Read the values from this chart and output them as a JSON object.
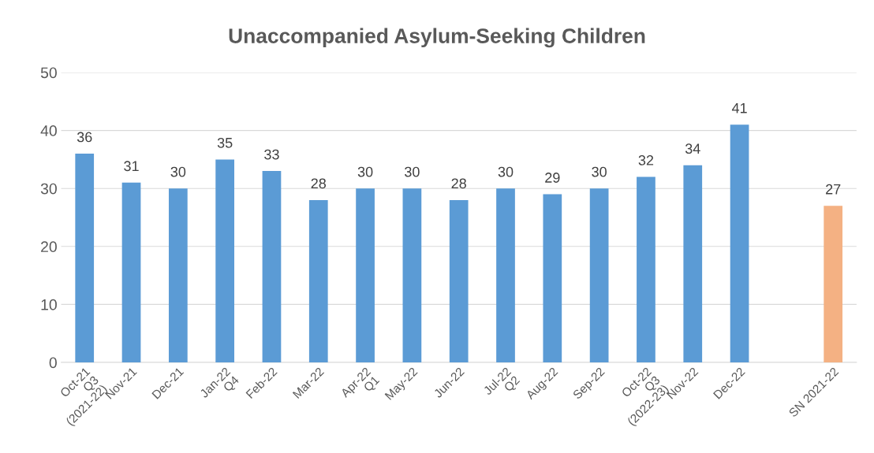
{
  "chart_data": {
    "type": "bar",
    "title": "Unaccompanied Asylum-Seeking Children",
    "categories": [
      "Oct-21\nQ3\n(2021-22)",
      "Nov-21",
      "Dec-21",
      "Jan-22\nQ4",
      "Feb-22",
      "Mar-22",
      "Apr-22\nQ1",
      "May-22",
      "Jun-22",
      "Jul-22\nQ2",
      "Aug-22",
      "Sep-22",
      "Oct-22\nQ3\n(2022-23)",
      "Nov-22",
      "Dec-22",
      null,
      "SN 2021-22"
    ],
    "values": [
      36,
      31,
      30,
      35,
      33,
      28,
      30,
      30,
      28,
      30,
      29,
      30,
      32,
      34,
      41,
      null,
      27
    ],
    "colors": [
      "#5b9bd5",
      "#5b9bd5",
      "#5b9bd5",
      "#5b9bd5",
      "#5b9bd5",
      "#5b9bd5",
      "#5b9bd5",
      "#5b9bd5",
      "#5b9bd5",
      "#5b9bd5",
      "#5b9bd5",
      "#5b9bd5",
      "#5b9bd5",
      "#5b9bd5",
      "#5b9bd5",
      "#5b9bd5",
      "#f4b183"
    ],
    "ylim": [
      0,
      50
    ],
    "yticks": [
      0,
      10,
      20,
      30,
      40,
      50
    ],
    "grid": "y",
    "data_labels": true
  }
}
